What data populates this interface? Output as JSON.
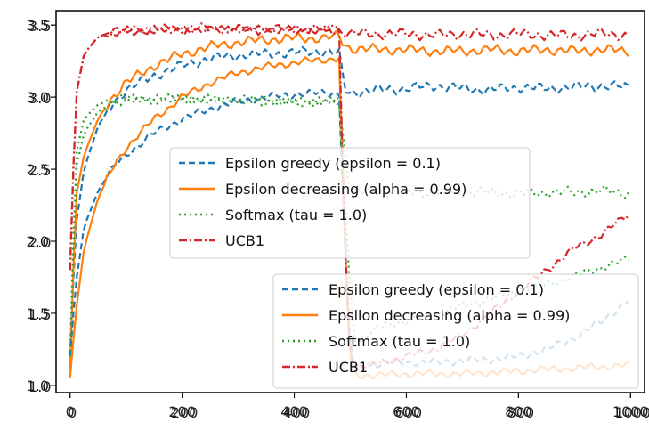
{
  "chart_data": [
    {
      "type": "line",
      "title": "",
      "xlabel": "",
      "ylabel": "",
      "xlim": [
        -25,
        1025
      ],
      "ylim": [
        0.95,
        3.6
      ],
      "x_ticks": [
        0,
        200,
        400,
        600,
        800,
        1000
      ],
      "x_tick_labels": [
        "0",
        "200",
        "400",
        "600",
        "800",
        "1000"
      ],
      "y_ticks": [
        1.0,
        1.5,
        2.0,
        2.5,
        3.0,
        3.5
      ],
      "y_tick_labels": [
        "1.0",
        "1.5",
        "2.0",
        "2.5",
        "3.0",
        "3.5"
      ],
      "grid": false,
      "legend_position": "center",
      "series": [
        {
          "name": "Epsilon greedy (epsilon = 0.1)",
          "color": "#1f77b4",
          "style": "dashed",
          "x": [
            0,
            10,
            25,
            50,
            75,
            100,
            150,
            200,
            250,
            300,
            350,
            400,
            450,
            480,
            490,
            500,
            550,
            600,
            650,
            700,
            750,
            800,
            850,
            900,
            950,
            1000
          ],
          "y": [
            1.2,
            2.1,
            2.5,
            2.8,
            2.95,
            3.05,
            3.15,
            3.22,
            3.27,
            3.29,
            3.3,
            3.31,
            3.32,
            3.3,
            3.05,
            3.03,
            3.05,
            3.06,
            3.08,
            3.06,
            3.05,
            3.07,
            3.06,
            3.07,
            3.08,
            3.07
          ]
        },
        {
          "name": "Epsilon decreasing (alpha = 0.99)",
          "color": "#ff7f0e",
          "style": "solid",
          "x": [
            0,
            10,
            25,
            50,
            75,
            100,
            150,
            200,
            250,
            300,
            350,
            400,
            450,
            480,
            490,
            500,
            550,
            600,
            650,
            700,
            750,
            800,
            850,
            900,
            950,
            1000
          ],
          "y": [
            1.1,
            2.3,
            2.6,
            2.85,
            3.0,
            3.1,
            3.22,
            3.3,
            3.35,
            3.38,
            3.4,
            3.41,
            3.41,
            3.42,
            3.36,
            3.34,
            3.33,
            3.33,
            3.32,
            3.32,
            3.33,
            3.32,
            3.33,
            3.32,
            3.33,
            3.32
          ]
        },
        {
          "name": "Softmax (tau = 1.0)",
          "color": "#2ca02c",
          "style": "dotted",
          "x": [
            0,
            10,
            25,
            50,
            75,
            100,
            150,
            200,
            250,
            300,
            350,
            400,
            450,
            480,
            490,
            500,
            550,
            600,
            650,
            700,
            750,
            800,
            850,
            900,
            950,
            1000
          ],
          "y": [
            1.2,
            2.6,
            2.85,
            2.95,
            2.98,
            2.99,
            2.99,
            2.99,
            2.98,
            2.98,
            2.97,
            2.96,
            2.97,
            2.97,
            2.62,
            2.35,
            2.34,
            2.34,
            2.34,
            2.34,
            2.34,
            2.33,
            2.34,
            2.34,
            2.35,
            2.33
          ]
        },
        {
          "name": "UCB1",
          "color": "#d62728",
          "style": "dashdot",
          "x": [
            0,
            10,
            25,
            50,
            75,
            100,
            150,
            200,
            250,
            300,
            350,
            400,
            450,
            480,
            490,
            500,
            550,
            600,
            650,
            700,
            750,
            800,
            850,
            900,
            950,
            1000
          ],
          "y": [
            1.8,
            3.0,
            3.3,
            3.42,
            3.45,
            3.46,
            3.47,
            3.47,
            3.48,
            3.47,
            3.47,
            3.47,
            3.47,
            3.46,
            3.45,
            3.44,
            3.44,
            3.44,
            3.43,
            3.44,
            3.43,
            3.44,
            3.43,
            3.43,
            3.44,
            3.43
          ]
        }
      ]
    },
    {
      "type": "line",
      "title": "",
      "xlabel": "",
      "ylabel": "",
      "xlim": [
        -25,
        1025
      ],
      "ylim": [
        0.95,
        3.6
      ],
      "x_ticks": [
        0,
        200,
        400,
        600,
        800,
        1000
      ],
      "x_tick_labels": [
        "0",
        "200",
        "400",
        "600",
        "800",
        "1000"
      ],
      "y_ticks": [
        1.0,
        1.5,
        2.0,
        2.5,
        3.0,
        3.5
      ],
      "y_tick_labels": [
        "1.0",
        "1.5",
        "2.0",
        "2.5",
        "3.0",
        "3.5"
      ],
      "grid": false,
      "legend_position": "lower right",
      "series": [
        {
          "name": "Epsilon greedy (epsilon = 0.1)",
          "color": "#1f77b4",
          "style": "dashed",
          "x": [
            0,
            10,
            25,
            50,
            75,
            100,
            150,
            200,
            250,
            300,
            350,
            400,
            450,
            480,
            490,
            500,
            510,
            550,
            600,
            650,
            700,
            750,
            800,
            850,
            900,
            950,
            1000
          ],
          "y": [
            1.2,
            1.7,
            2.1,
            2.35,
            2.5,
            2.6,
            2.75,
            2.85,
            2.92,
            2.97,
            3.0,
            3.02,
            3.03,
            3.03,
            2.0,
            1.25,
            1.12,
            1.15,
            1.16,
            1.16,
            1.17,
            1.18,
            1.2,
            1.25,
            1.33,
            1.45,
            1.6
          ]
        },
        {
          "name": "Epsilon decreasing (alpha = 0.99)",
          "color": "#ff7f0e",
          "style": "solid",
          "x": [
            0,
            10,
            25,
            50,
            75,
            100,
            150,
            200,
            250,
            300,
            350,
            400,
            450,
            480,
            490,
            500,
            510,
            550,
            600,
            650,
            700,
            750,
            800,
            850,
            900,
            950,
            1000
          ],
          "y": [
            1.05,
            1.5,
            1.95,
            2.3,
            2.5,
            2.65,
            2.85,
            3.0,
            3.1,
            3.17,
            3.21,
            3.24,
            3.26,
            3.27,
            2.0,
            1.12,
            1.07,
            1.07,
            1.08,
            1.08,
            1.08,
            1.09,
            1.1,
            1.11,
            1.12,
            1.13,
            1.14
          ]
        },
        {
          "name": "Softmax (tau = 1.0)",
          "color": "#2ca02c",
          "style": "dotted",
          "x": [
            0,
            10,
            25,
            50,
            75,
            100,
            150,
            200,
            250,
            300,
            350,
            400,
            450,
            480,
            490,
            500,
            510,
            550,
            600,
            650,
            700,
            750,
            800,
            850,
            900,
            950,
            1000
          ],
          "y": [
            1.2,
            2.5,
            2.75,
            2.9,
            2.96,
            2.98,
            2.98,
            2.99,
            2.98,
            2.98,
            2.98,
            2.97,
            2.97,
            2.97,
            2.3,
            1.6,
            1.3,
            1.4,
            1.45,
            1.5,
            1.55,
            1.6,
            1.65,
            1.7,
            1.76,
            1.82,
            1.88
          ]
        },
        {
          "name": "UCB1",
          "color": "#d62728",
          "style": "dashdot",
          "x": [
            0,
            10,
            25,
            50,
            75,
            100,
            150,
            200,
            250,
            300,
            350,
            400,
            450,
            480,
            490,
            500,
            510,
            550,
            600,
            650,
            700,
            750,
            800,
            850,
            900,
            950,
            1000
          ],
          "y": [
            1.8,
            3.0,
            3.3,
            3.42,
            3.45,
            3.46,
            3.47,
            3.47,
            3.47,
            3.47,
            3.47,
            3.47,
            3.47,
            3.47,
            2.0,
            1.2,
            1.13,
            1.15,
            1.2,
            1.25,
            1.35,
            1.5,
            1.65,
            1.8,
            1.95,
            2.05,
            2.2
          ]
        }
      ]
    }
  ]
}
